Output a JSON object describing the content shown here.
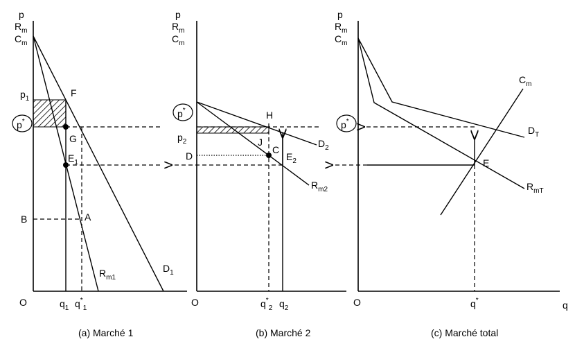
{
  "captions": {
    "panel_a": "(a) Marché 1",
    "panel_b": "(b) Marché 2",
    "panel_c": "(c) Marché total"
  },
  "panel_a": {
    "p": "p",
    "rm": "R",
    "rm_sub": "m",
    "cm": "C",
    "cm_sub": "m",
    "p1": "p",
    "p1_sub": "1",
    "pstar": "p",
    "pstar_sup": "*",
    "F": "F",
    "G": "G",
    "E1": "E",
    "E1_sub": "1",
    "B": "B",
    "A": "A",
    "O": "O",
    "q1": "q",
    "q1_sub": "1",
    "qs1": "q",
    "qs1_sup": "*",
    "qs1_sub": "1",
    "Rm1": "R",
    "Rm1_sub": "m1",
    "D1": "D",
    "D1_sub": "1"
  },
  "panel_b": {
    "p": "p",
    "rm": "R",
    "rm_sub": "m",
    "cm": "C",
    "cm_sub": "m",
    "pstar": "p",
    "pstar_sup": "*",
    "H": "H",
    "p2": "p",
    "p2_sub": "2",
    "J": "J",
    "D": "D",
    "C": "C",
    "E2": "E",
    "E2_sub": "2",
    "D2": "D",
    "D2_sub": "2",
    "Rm2": "R",
    "Rm2_sub": "m2",
    "O": "O",
    "qs2": "q",
    "qs2_sup": "*",
    "qs2_sub": "2",
    "q2": "q",
    "q2_sub": "2"
  },
  "panel_c": {
    "p": "p",
    "rm": "R",
    "rm_sub": "m",
    "cm": "C",
    "cm_sub": "m",
    "Cm": "C",
    "Cm_sub": "m",
    "pstar": "p",
    "pstar_sup": "*",
    "DT": "D",
    "DT_sub": "T",
    "E": "E",
    "RmT": "R",
    "RmT_sub": "mT",
    "O": "O",
    "qstar": "q",
    "qstar_sup": "*",
    "q": "q"
  }
}
